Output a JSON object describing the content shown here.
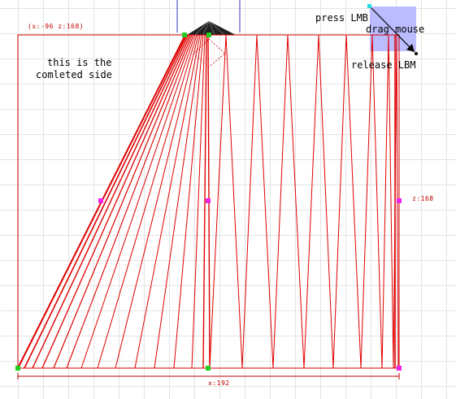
{
  "viewport": {
    "coord_readout": "(x:-96  z:168)",
    "height_label": "z:168",
    "width_label": "x:192"
  },
  "notes": {
    "completed_side_line1": "this is the",
    "completed_side_line2": "comleted side",
    "press": "press LMB",
    "drag": "drag mouse",
    "release": "release LBM"
  },
  "colors": {
    "frame": "#d40000",
    "handle_corner": "#22cc22",
    "handle_mid": "#ee22ee",
    "selection": "#b4b4ff",
    "apex": "#000000"
  }
}
